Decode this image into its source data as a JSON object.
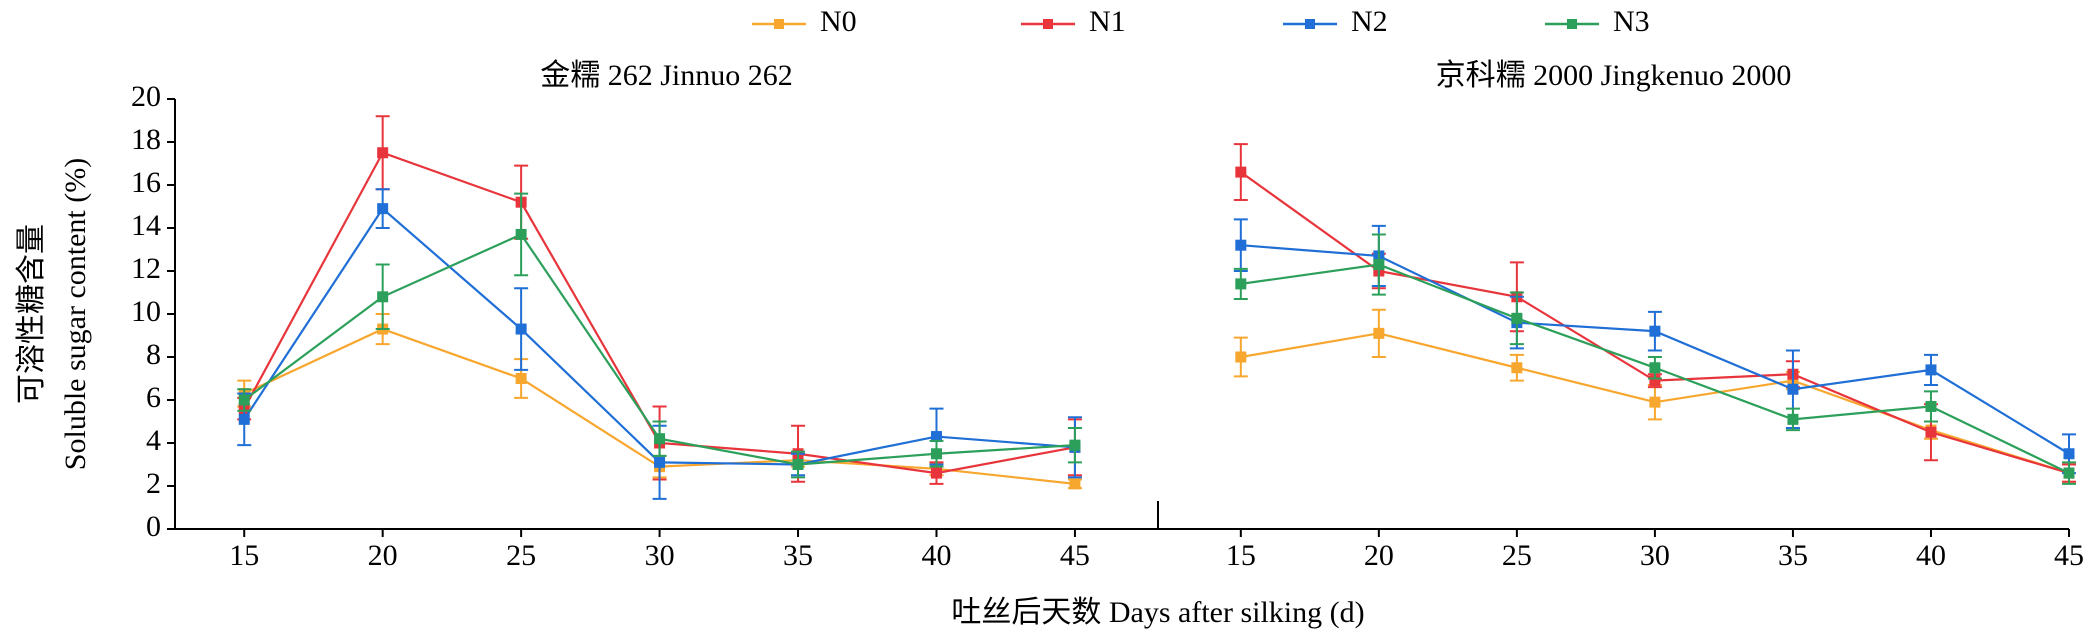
{
  "chart_data": [
    {
      "type": "line",
      "title": "金糯 262 Jinnuo 262",
      "ylabel": [
        "可溶性糖含量",
        "Soluble sugar content (%)"
      ],
      "xlabel": "吐丝后天数 Days after silking (d)",
      "x": [
        15,
        20,
        25,
        30,
        35,
        40,
        45
      ],
      "xlim": [
        12.5,
        48
      ],
      "xticks": [
        15,
        20,
        25,
        30,
        35,
        40,
        45
      ],
      "ylim": [
        0,
        20
      ],
      "yticks": [
        0,
        2,
        4,
        6,
        8,
        10,
        12,
        14,
        16,
        18,
        20
      ],
      "series": [
        {
          "name": "N0",
          "color": "#f7a62e",
          "values": [
            6.3,
            9.3,
            7.0,
            2.9,
            3.2,
            2.8,
            2.1
          ],
          "errors": [
            0.6,
            0.7,
            0.9,
            0.5,
            0.3,
            0.3,
            0.2
          ]
        },
        {
          "name": "N1",
          "color": "#e8343b",
          "values": [
            5.6,
            17.5,
            15.2,
            4.0,
            3.5,
            2.6,
            3.8
          ],
          "errors": [
            0.5,
            1.7,
            1.7,
            1.7,
            1.3,
            0.5,
            1.3
          ]
        },
        {
          "name": "N2",
          "color": "#1f6fd6",
          "values": [
            5.1,
            14.9,
            9.3,
            3.1,
            3.0,
            4.3,
            3.8
          ],
          "errors": [
            1.2,
            0.9,
            1.9,
            1.7,
            0.5,
            1.3,
            1.4
          ]
        },
        {
          "name": "N3",
          "color": "#2ca05a",
          "values": [
            6.0,
            10.8,
            13.7,
            4.2,
            3.0,
            3.5,
            3.9
          ],
          "errors": [
            0.5,
            1.5,
            1.9,
            0.8,
            0.6,
            0.6,
            0.8
          ]
        }
      ]
    },
    {
      "type": "line",
      "title": "京科糯 2000 Jingkenuo 2000",
      "x": [
        15,
        20,
        25,
        30,
        35,
        40,
        45
      ],
      "xlim": [
        12,
        45
      ],
      "xticks": [
        15,
        20,
        25,
        30,
        35,
        40,
        45
      ],
      "ylim": [
        0,
        20
      ],
      "series": [
        {
          "color": "#f7a62e",
          "values": [
            8.0,
            9.1,
            7.5,
            5.9,
            6.9,
            4.6,
            2.6
          ],
          "errors": [
            0.9,
            1.1,
            0.6,
            0.8,
            0.4,
            0.4,
            0.4
          ]
        },
        {
          "color": "#e8343b",
          "values": [
            16.6,
            12.0,
            10.8,
            6.9,
            7.2,
            4.5,
            2.6
          ],
          "errors": [
            1.3,
            0.8,
            1.6,
            0.3,
            0.6,
            1.3,
            0.4
          ]
        },
        {
          "color": "#1f6fd6",
          "values": [
            13.2,
            12.7,
            9.6,
            9.2,
            6.5,
            7.4,
            3.5
          ],
          "errors": [
            1.2,
            1.4,
            1.2,
            0.9,
            1.8,
            0.7,
            0.9
          ]
        },
        {
          "color": "#2ca05a",
          "values": [
            11.4,
            12.3,
            9.8,
            7.5,
            5.1,
            5.7,
            2.6
          ],
          "errors": [
            0.7,
            1.4,
            1.2,
            0.5,
            0.5,
            0.7,
            0.5
          ]
        }
      ]
    }
  ]
}
